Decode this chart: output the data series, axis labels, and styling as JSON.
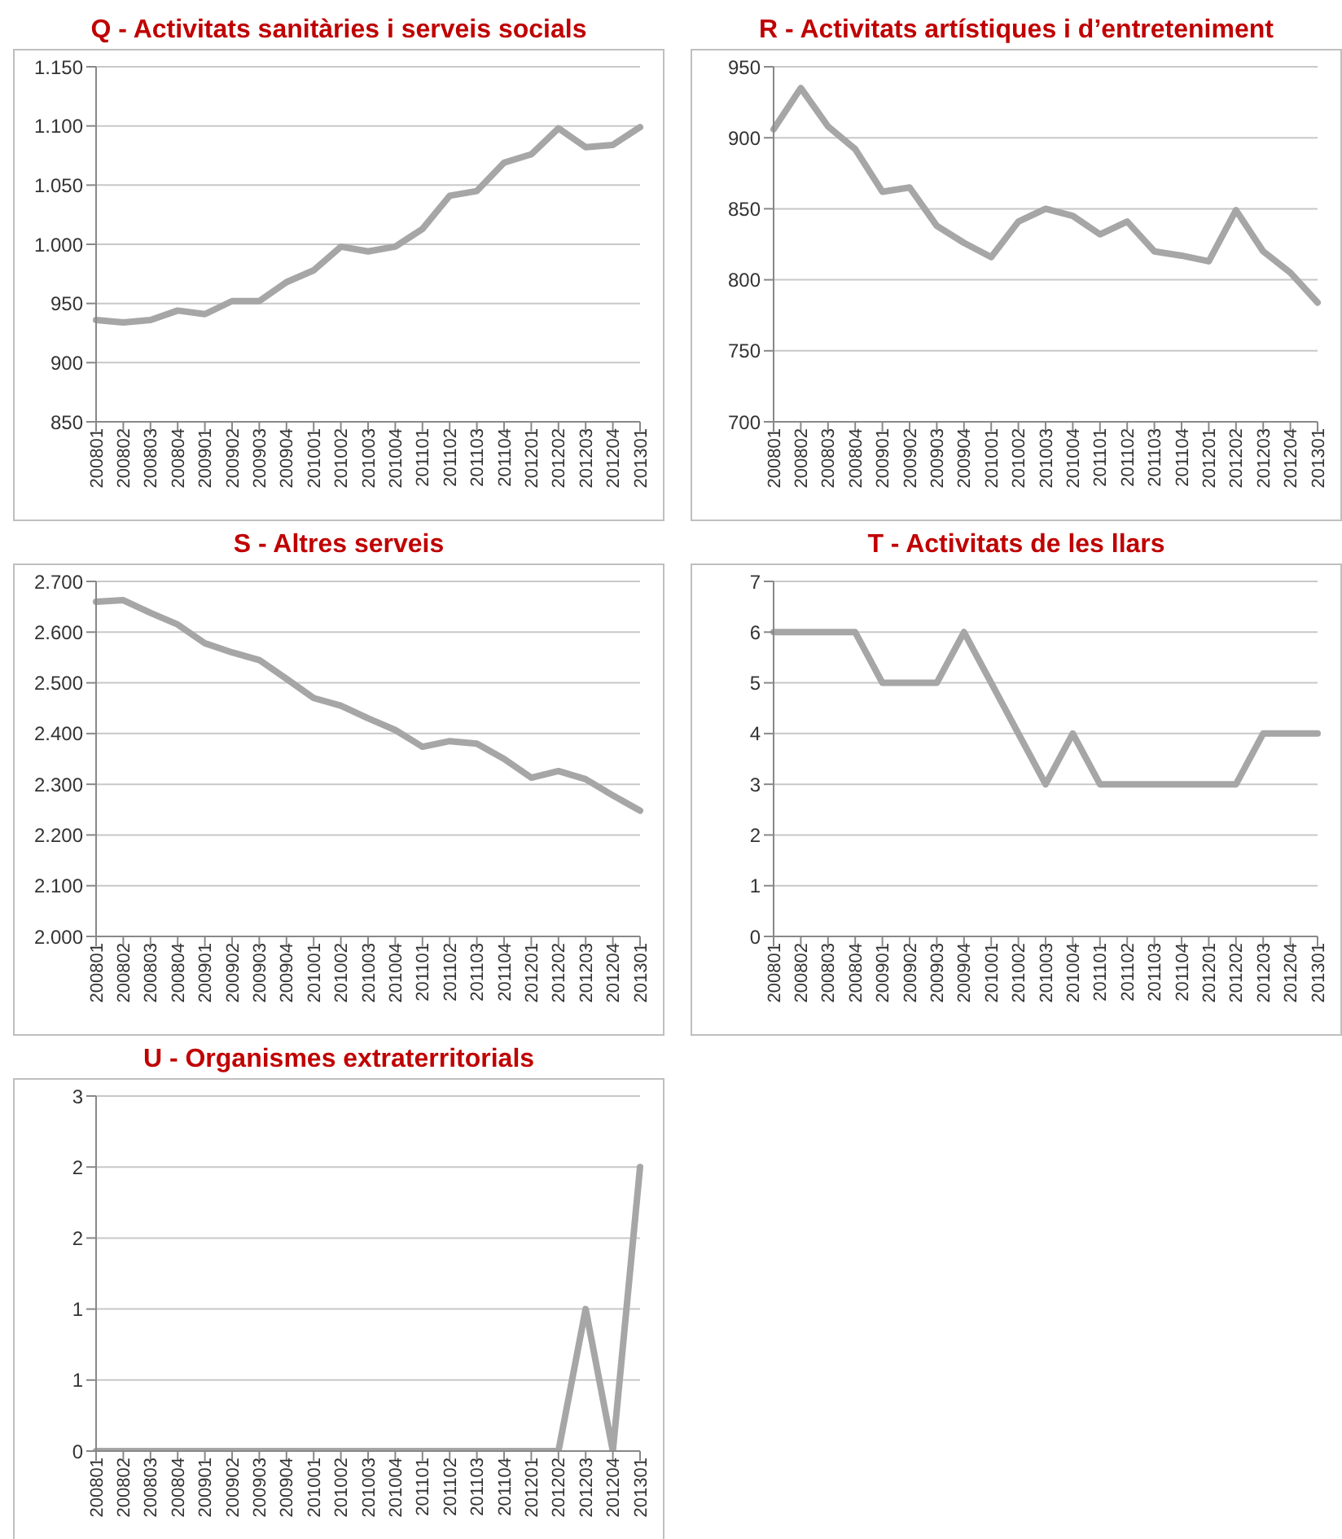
{
  "chart_data": [
    {
      "type": "line",
      "title": "Q - Activitats sanitàries i serveis socials",
      "categories": [
        "200801",
        "200802",
        "200803",
        "200804",
        "200901",
        "200902",
        "200903",
        "200904",
        "201001",
        "201002",
        "201003",
        "201004",
        "201101",
        "201102",
        "201103",
        "201104",
        "201201",
        "201202",
        "201203",
        "201204",
        "201301"
      ],
      "series": [
        {
          "color": "#a6a6a6",
          "values": [
            936,
            934,
            936,
            944,
            941,
            952,
            952,
            968,
            978,
            998,
            994,
            998,
            1013,
            1041,
            1045,
            1069,
            1076,
            1098,
            1082,
            1084,
            1099
          ]
        }
      ],
      "ylim": [
        850,
        1150
      ],
      "yticks": [
        {
          "value": 850,
          "label": "850"
        },
        {
          "value": 900,
          "label": "900"
        },
        {
          "value": 950,
          "label": "950"
        },
        {
          "value": 1000,
          "label": "1.000"
        },
        {
          "value": 1050,
          "label": "1.050"
        },
        {
          "value": 1100,
          "label": "1.100"
        },
        {
          "value": 1150,
          "label": "1.150"
        }
      ],
      "grid": "y",
      "marker": "none",
      "line_style": "solid"
    },
    {
      "type": "line",
      "title": "R - Activitats artístiques i d’entreteniment",
      "categories": [
        "200801",
        "200802",
        "200803",
        "200804",
        "200901",
        "200902",
        "200903",
        "200904",
        "201001",
        "201002",
        "201003",
        "201004",
        "201101",
        "201102",
        "201103",
        "201104",
        "201201",
        "201202",
        "201203",
        "201204",
        "201301"
      ],
      "series": [
        {
          "color": "#a6a6a6",
          "values": [
            906,
            935,
            908,
            892,
            862,
            865,
            838,
            826,
            816,
            841,
            850,
            845,
            832,
            841,
            820,
            817,
            813,
            849,
            820,
            805,
            784
          ]
        }
      ],
      "ylim": [
        700,
        950
      ],
      "yticks": [
        700,
        750,
        800,
        850,
        900,
        950
      ],
      "grid": "y",
      "marker": "none",
      "line_style": "solid"
    },
    {
      "type": "line",
      "title": "S - Altres serveis",
      "categories": [
        "200801",
        "200802",
        "200803",
        "200804",
        "200901",
        "200902",
        "200903",
        "200904",
        "201001",
        "201002",
        "201003",
        "201004",
        "201101",
        "201102",
        "201103",
        "201104",
        "201201",
        "201202",
        "201203",
        "201204",
        "201301"
      ],
      "series": [
        {
          "color": "#a6a6a6",
          "values": [
            2660,
            2663,
            2638,
            2615,
            2578,
            2560,
            2545,
            2508,
            2470,
            2455,
            2430,
            2407,
            2374,
            2385,
            2380,
            2350,
            2313,
            2326,
            2310,
            2278,
            2248
          ]
        }
      ],
      "ylim": [
        2000,
        2700
      ],
      "yticks": [
        {
          "value": 2000,
          "label": "2.000"
        },
        {
          "value": 2100,
          "label": "2.100"
        },
        {
          "value": 2200,
          "label": "2.200"
        },
        {
          "value": 2300,
          "label": "2.300"
        },
        {
          "value": 2400,
          "label": "2.400"
        },
        {
          "value": 2500,
          "label": "2.500"
        },
        {
          "value": 2600,
          "label": "2.600"
        },
        {
          "value": 2700,
          "label": "2.700"
        }
      ],
      "grid": "y",
      "marker": "none",
      "line_style": "solid"
    },
    {
      "type": "line",
      "title": "T - Activitats de les llars",
      "categories": [
        "200801",
        "200802",
        "200803",
        "200804",
        "200901",
        "200902",
        "200903",
        "200904",
        "201001",
        "201002",
        "201003",
        "201004",
        "201101",
        "201102",
        "201103",
        "201104",
        "201201",
        "201202",
        "201203",
        "201204",
        "201301"
      ],
      "series": [
        {
          "color": "#a6a6a6",
          "values": [
            6,
            6,
            6,
            6,
            5,
            5,
            5,
            6,
            5,
            4,
            3,
            4,
            3,
            3,
            3,
            3,
            3,
            3,
            4,
            4,
            4
          ]
        }
      ],
      "ylim": [
        0,
        7
      ],
      "yticks": [
        0,
        1,
        2,
        3,
        4,
        5,
        6,
        7
      ],
      "grid": "y",
      "marker": "none",
      "line_style": "solid"
    },
    {
      "type": "line",
      "title": "U - Organismes extraterritorials",
      "categories": [
        "200801",
        "200802",
        "200803",
        "200804",
        "200901",
        "200902",
        "200903",
        "200904",
        "201001",
        "201002",
        "201003",
        "201004",
        "201101",
        "201102",
        "201103",
        "201104",
        "201201",
        "201202",
        "201203",
        "201204",
        "201301"
      ],
      "series": [
        {
          "color": "#a6a6a6",
          "values": [
            0,
            0,
            0,
            0,
            0,
            0,
            0,
            0,
            0,
            0,
            0,
            0,
            0,
            0,
            0,
            0,
            0,
            0,
            1,
            0,
            2
          ]
        }
      ],
      "ylim": [
        0,
        2.5
      ],
      "yticks": [
        0,
        {
          "value": 0.5,
          "label": "1"
        },
        1,
        {
          "value": 1.5,
          "label": "2"
        },
        2,
        {
          "value": 2.5,
          "label": "3"
        }
      ],
      "grid": "y",
      "marker": "none",
      "line_style": "solid"
    }
  ]
}
